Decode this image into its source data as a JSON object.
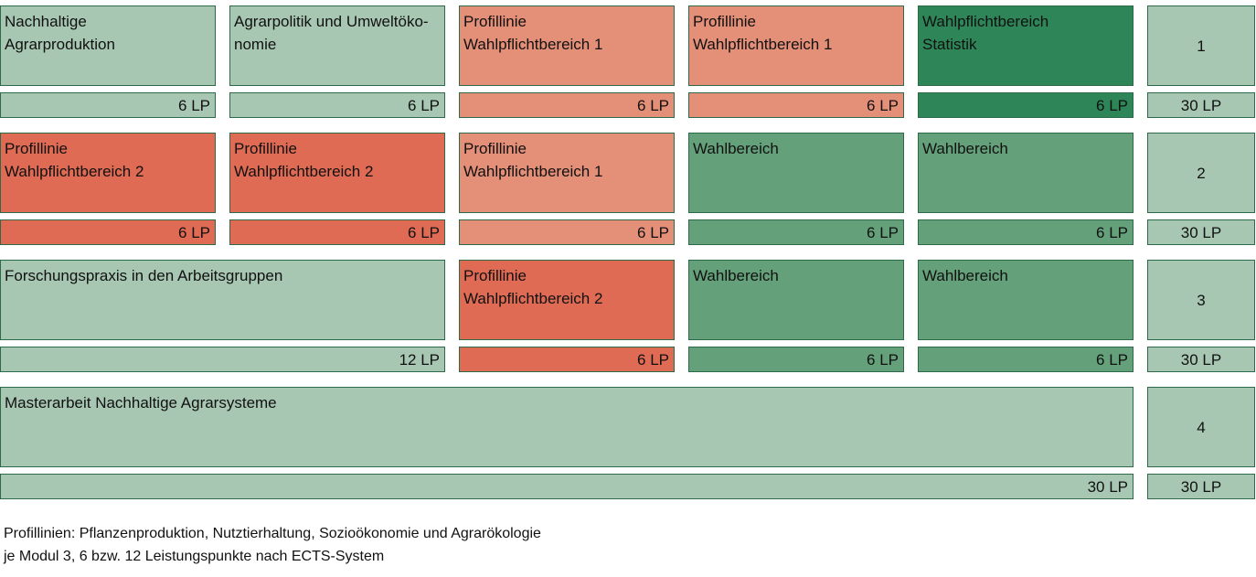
{
  "rows": [
    {
      "modules": [
        {
          "title": "Nachhaltige\nAgrarproduktion",
          "lp": "6 LP",
          "color": "#a8c7b3"
        },
        {
          "title": "Agrarpolitik und Umweltöko-\nnomie",
          "lp": "6 LP",
          "color": "#a8c7b3"
        },
        {
          "title": "Profillinie\nWahlpflichtbereich 1",
          "lp": "6 LP",
          "color": "#e48f78"
        },
        {
          "title": "Profillinie\nWahlpflichtbereich 1",
          "lp": "6 LP",
          "color": "#e48f78"
        },
        {
          "title": "Wahlpflichtbereich\nStatistik",
          "lp": "6 LP",
          "color": "#2e8558"
        }
      ],
      "semester": "1",
      "total": "30 LP"
    },
    {
      "modules": [
        {
          "title": "Profillinie\nWahlpflichtbereich 2",
          "lp": "6 LP",
          "color": "#df6b54"
        },
        {
          "title": "Profillinie\nWahlpflichtbereich 2",
          "lp": "6 LP",
          "color": "#df6b54"
        },
        {
          "title": "Profillinie\nWahlpflichtbereich 1",
          "lp": "6 LP",
          "color": "#e48f78"
        },
        {
          "title": "Wahlbereich",
          "lp": "6 LP",
          "color": "#64a07a"
        },
        {
          "title": "Wahlbereich",
          "lp": "6 LP",
          "color": "#64a07a"
        }
      ],
      "semester": "2",
      "total": "30 LP"
    },
    {
      "modules": [
        {
          "title": "Forschungspraxis in den Arbeitsgruppen",
          "lp": "12 LP",
          "color": "#a8c7b3"
        },
        {
          "title": "Profillinie\nWahlpflichtbereich 2",
          "lp": "6 LP",
          "color": "#df6b54"
        },
        {
          "title": "Wahlbereich",
          "lp": "6 LP",
          "color": "#64a07a"
        },
        {
          "title": "Wahlbereich",
          "lp": "6 LP",
          "color": "#64a07a"
        }
      ],
      "semester": "3",
      "total": "30 LP"
    },
    {
      "modules": [
        {
          "title": "Masterarbeit Nachhaltige Agrarsysteme",
          "lp": "30 LP",
          "color": "#a8c7b3"
        }
      ],
      "semester": "4",
      "total": "30 LP"
    }
  ],
  "footnotes": {
    "line1": "Profillinien: Pflanzenproduktion, Nutztierhaltung, Sozioökonomie und Agrarökologie",
    "line2": "je Modul 3, 6 bzw. 12 Leistungspunkte nach ECTS-System"
  }
}
